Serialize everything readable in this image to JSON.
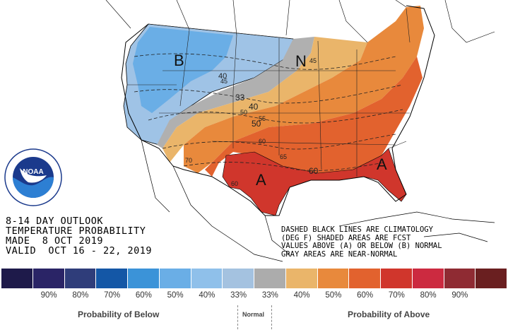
{
  "map": {
    "title_lines": [
      "8-14 DAY OUTLOOK",
      "TEMPERATURE PROBABILITY",
      "MADE  8 OCT 2019",
      "VALID  OCT 16 - 22, 2019"
    ],
    "notes": [
      "DASHED BLACK LINES ARE CLIMATOLOGY",
      "(DEG F) SHADED AREAS ARE FCST",
      "VALUES ABOVE (A) OR BELOW (B) NORMAL",
      "GRAY AREAS ARE NEAR-NORMAL"
    ],
    "region_labels": [
      "B",
      "N",
      "A",
      "A"
    ],
    "climatology_labels": [
      "40",
      "45",
      "33",
      "40",
      "50",
      "55",
      "50",
      "60",
      "65",
      "70",
      "60",
      "60",
      "45"
    ],
    "logo_text": "NOAA",
    "logo_ring_text": "NATIONAL OCEANIC AND ATMOSPHERIC ADMINISTRATION · U.S. DEPARTMENT OF COMMERCE"
  },
  "legend": {
    "colors": [
      "#1e1a4a",
      "#2a2466",
      "#2f3d7a",
      "#1457a6",
      "#3b93d8",
      "#6aaee6",
      "#8fc0ea",
      "#a4c2e0",
      "#acacac",
      "#eab56a",
      "#e8893c",
      "#e2622e",
      "#d0362c",
      "#cc2a40",
      "#8f2b33",
      "#6a1f20"
    ],
    "tick_labels": [
      "",
      "90%",
      "80%",
      "70%",
      "60%",
      "50%",
      "40%",
      "33%",
      "33%",
      "40%",
      "50%",
      "60%",
      "70%",
      "80%",
      "90%",
      ""
    ],
    "below_caption": "Probability of Below",
    "normal_caption": "Normal",
    "above_caption": "Probability of Above"
  }
}
